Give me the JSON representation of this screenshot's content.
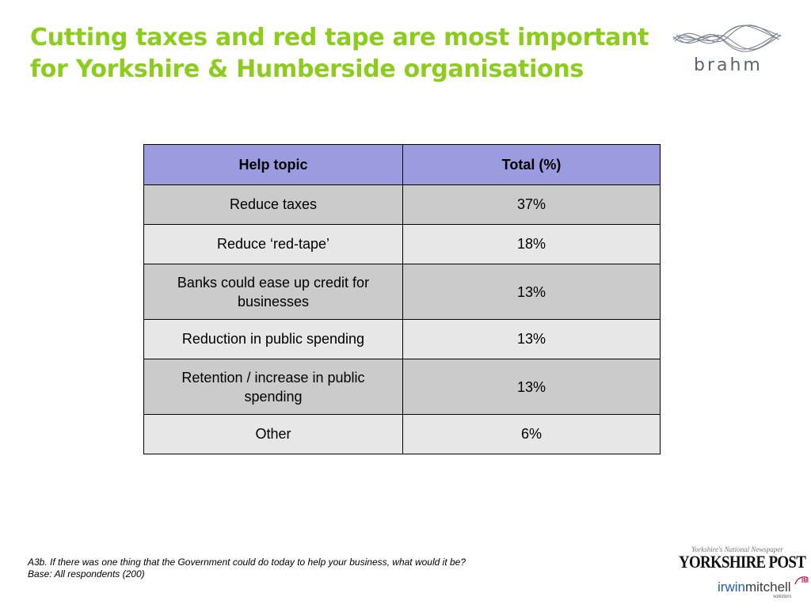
{
  "slide": {
    "title_line1": "Cutting taxes and red tape are most important",
    "title_line2": "for Yorkshire & Humberside organisations",
    "title_color": "#8ccc1c"
  },
  "logos": {
    "brahm": "brahm",
    "yorkshire_post_tagline": "Yorkshire's National Newspaper",
    "yorkshire_post_name": "YORKSHIRE POST",
    "irwin_part": "irwin",
    "mitchell_part": "mitchell",
    "irwin_mitchell_badge": "IM",
    "irwin_mitchell_sub": "solicitors"
  },
  "table": {
    "headers": [
      "Help topic",
      "Total (%)"
    ],
    "rows": [
      {
        "topic": "Reduce taxes",
        "total": "37%"
      },
      {
        "topic": "Reduce ‘red-tape’",
        "total": "18%"
      },
      {
        "topic": "Banks could ease up credit for businesses",
        "total": "13%"
      },
      {
        "topic": "Reduction in public spending",
        "total": "13%"
      },
      {
        "topic": "Retention / increase in public spending",
        "total": "13%"
      },
      {
        "topic": "Other",
        "total": "6%"
      }
    ],
    "header_color": "#9b9be0",
    "row_dark": "#cbcbcb",
    "row_light": "#e7e7e7"
  },
  "footnote": {
    "question": "A3b. If there was one thing that the Government could do today to help your business, what would it be?",
    "base": "Base: All respondents (200)"
  }
}
